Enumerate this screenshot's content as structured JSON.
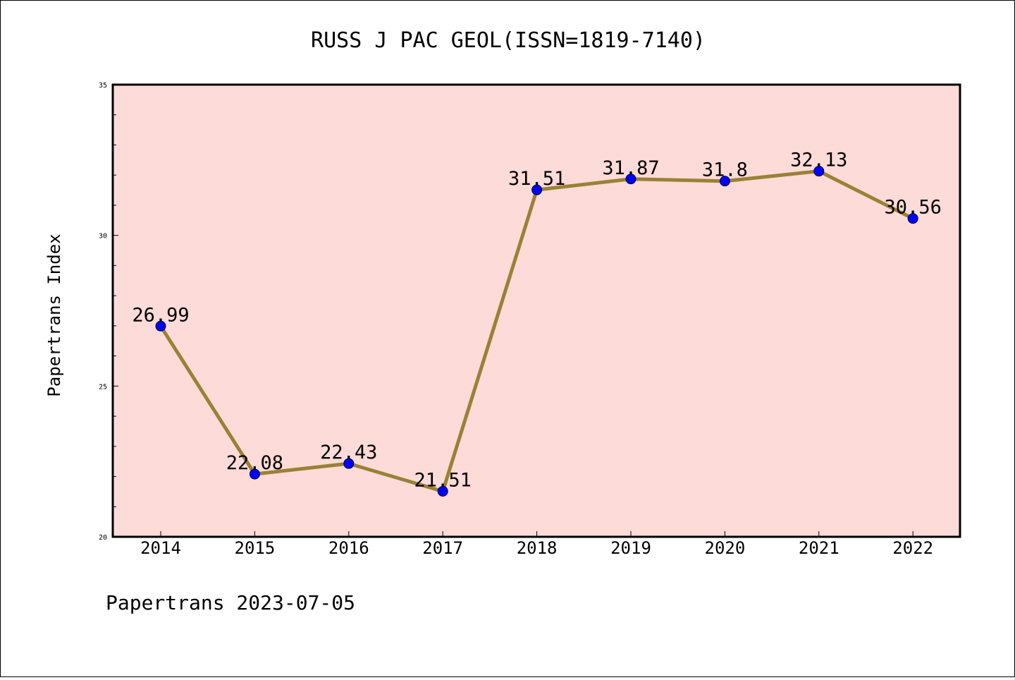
{
  "chart_data": {
    "type": "line",
    "title": "RUSS J PAC GEOL(ISSN=1819-7140)",
    "ylabel": "Papertrans Index",
    "xlabel": "",
    "categories": [
      "2014",
      "2015",
      "2016",
      "2017",
      "2018",
      "2019",
      "2020",
      "2021",
      "2022"
    ],
    "series": [
      {
        "values": [
          26.99,
          22.08,
          22.43,
          21.51,
          31.51,
          31.87,
          31.8,
          32.13,
          30.56
        ],
        "labels": [
          "26.99",
          "22.08",
          "22.43",
          "21.51",
          "31.51",
          "31.87",
          "31.8",
          "32.13",
          "30.56"
        ]
      }
    ],
    "ylim": [
      20,
      35
    ],
    "yticks": [
      "20",
      "25",
      "30",
      "35"
    ],
    "grid": false,
    "legend": "none",
    "colors": {
      "plot_background": "#fddbd8",
      "line": "#9a8136",
      "marker": "#0000ff"
    }
  },
  "footer": {
    "text": "Papertrans 2023-07-05"
  }
}
